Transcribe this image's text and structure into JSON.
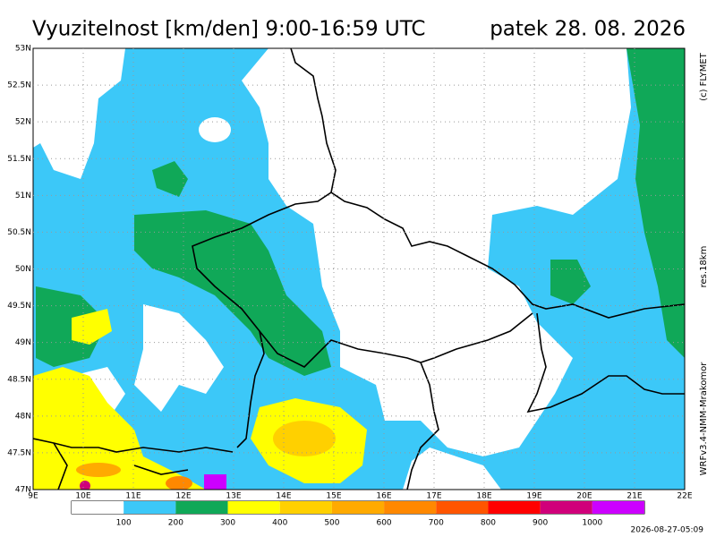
{
  "header": {
    "title": "Vyuzitelnost [km/den] 9:00-16:59 UTC",
    "date": "patek 28. 08. 2026"
  },
  "side": {
    "credit": "(c) FLYMET",
    "resolution": "res.18km",
    "model": "WRFv3.4-NMM-Mrakomor"
  },
  "map": {
    "lat_labels": [
      "53N",
      "52.5N",
      "52N",
      "51.5N",
      "51N",
      "50.5N",
      "50N",
      "49.5N",
      "49N",
      "48.5N",
      "48N",
      "47.5N",
      "47N"
    ],
    "lon_labels": [
      "9E",
      "10E",
      "11E",
      "12E",
      "13E",
      "14E",
      "15E",
      "16E",
      "17E",
      "18E",
      "19E",
      "20E",
      "21E",
      "22E"
    ]
  },
  "colorbar": {
    "colors": [
      "#ffffff",
      "#3cc8f8",
      "#10a858",
      "#ffff00",
      "#ffd000",
      "#ffaa00",
      "#ff8800",
      "#ff5500",
      "#ff0000",
      "#d0007a",
      "#cc00ff"
    ],
    "labels": [
      "100",
      "200",
      "300",
      "400",
      "500",
      "600",
      "700",
      "800",
      "900",
      "1000"
    ]
  },
  "footer": {
    "timestamp": "2026-08-27-05:09"
  }
}
